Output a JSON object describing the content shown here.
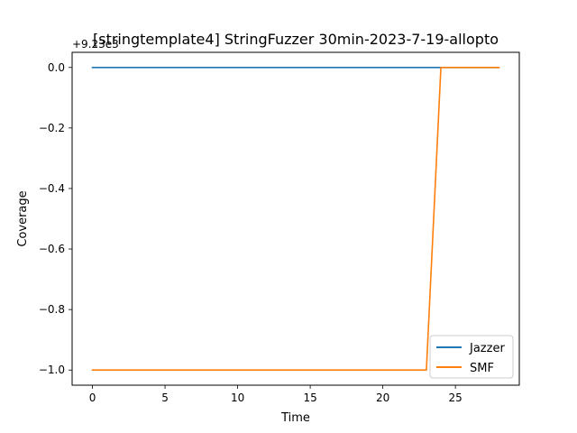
{
  "chart_data": {
    "type": "line",
    "title": "[stringtemplate4] StringFuzzer 30min-2023-7-19-allopto",
    "xlabel": "Time",
    "ylabel": "Coverage",
    "y_offset_label": "+9.23e3",
    "xlim": [
      -1.4,
      29.4
    ],
    "ylim": [
      -1.05,
      0.05
    ],
    "x_ticks": [
      0,
      5,
      10,
      15,
      20,
      25
    ],
    "x_tick_labels": [
      "0",
      "5",
      "10",
      "15",
      "20",
      "25"
    ],
    "y_ticks": [
      0.0,
      -0.2,
      -0.4,
      -0.6,
      -0.8,
      -1.0
    ],
    "y_tick_labels": [
      "0.0",
      "−0.2",
      "−0.4",
      "−0.6",
      "−0.8",
      "−1.0"
    ],
    "grid": false,
    "legend_position": "lower right",
    "series": [
      {
        "name": "Jazzer",
        "color": "#1f77b4",
        "x": [
          0,
          28
        ],
        "y": [
          0.0,
          0.0
        ]
      },
      {
        "name": "SMF",
        "color": "#ff7f0e",
        "x": [
          0,
          23,
          24,
          28
        ],
        "y": [
          -1.0,
          -1.0,
          0.0,
          0.0
        ]
      }
    ]
  }
}
